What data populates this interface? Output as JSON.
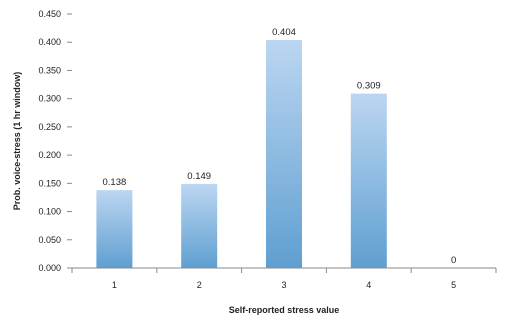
{
  "chart_data": {
    "type": "bar",
    "title": "",
    "xlabel": "Self-reported stress value",
    "ylabel": "Prob. voice-stress (1 hr window)",
    "categories": [
      "1",
      "2",
      "3",
      "4",
      "5"
    ],
    "values": [
      0.138,
      0.149,
      0.404,
      0.309,
      0
    ],
    "data_labels": [
      "0.138",
      "0.149",
      "0.404",
      "0.309",
      "0"
    ],
    "ylim": [
      0,
      0.45
    ],
    "yticks": [
      "0.000",
      "0.050",
      "0.100",
      "0.150",
      "0.200",
      "0.250",
      "0.300",
      "0.350",
      "0.400",
      "0.450"
    ],
    "grid": false,
    "legend": "none",
    "colors": {
      "bar_top": "#bcd6f1",
      "bar_bottom": "#5f9fd1",
      "axis": "#8a8a8a"
    }
  }
}
